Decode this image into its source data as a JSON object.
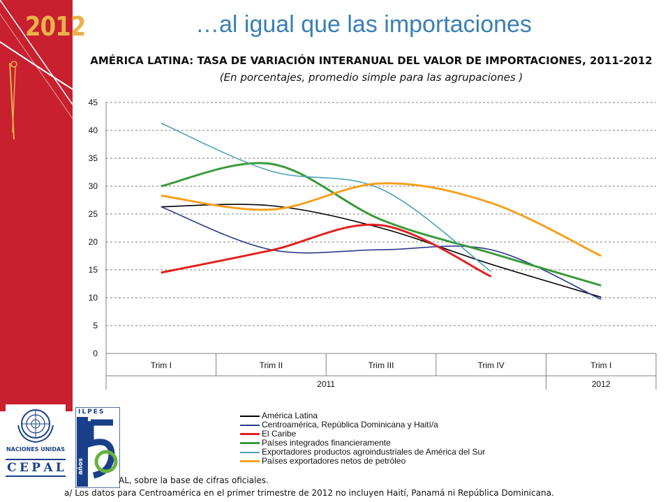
{
  "slide": {
    "title": "…al igual que las importaciones",
    "year_badge": "2012",
    "footnote_source": "AL, sobre la base de cifras oficiales.",
    "footnote_a": "a/ Los datos para Centroamérica en el primer trimestre de 2012 no incluyen Haití, Panamá ni República Dominicana.",
    "logos": {
      "un_label": "NACIONES UNIDAS",
      "cepal_letters": [
        "C",
        "E",
        "P",
        "A",
        "L"
      ],
      "ilpes_label": "ILPES",
      "ilpes_anos": "años"
    }
  },
  "colors": {
    "sidebar": "#c8202f",
    "year_badge": "#e9b24a",
    "title": "#3a7fb5",
    "logo_blue": "#1a3f8a",
    "logo_green": "#6ab23e"
  },
  "chart_data": {
    "type": "line",
    "title": "AMÉRICA LATINA: TASA DE VARIACIÓN INTERANUAL DEL VALOR DE IMPORTACIONES, 2011-2012",
    "subtitle": "(En porcentajes, promedio simple para las agrupaciones )",
    "categories": [
      "Trim I",
      "Trim II",
      "Trim III",
      "Trim IV",
      "Trim I"
    ],
    "category_groups": [
      {
        "label": "2011",
        "span": 4
      },
      {
        "label": "2012",
        "span": 1
      }
    ],
    "ylim": [
      0,
      45
    ],
    "yticks": [
      0,
      5,
      10,
      15,
      20,
      25,
      30,
      35,
      40,
      45
    ],
    "grid": true,
    "legend_position": "bottom",
    "series": [
      {
        "name": "América Latina",
        "color": "#000000",
        "values": [
          26.3,
          26.5,
          22.5,
          16.0,
          10.1
        ]
      },
      {
        "name": "Centroamérica, República Dominicana y Haití/a",
        "color": "#2b3a8c",
        "values": [
          26.3,
          18.6,
          18.6,
          18.6,
          9.7
        ]
      },
      {
        "name": "El Caribe",
        "color": "#e02020",
        "values": [
          14.5,
          18.5,
          23.0,
          13.8,
          null
        ]
      },
      {
        "name": "Países integrados financieramente",
        "color": "#3a9a3a",
        "values": [
          30.0,
          34.0,
          24.0,
          18.0,
          12.2
        ]
      },
      {
        "name": "Exportadores productos agroindustriales de América del Sur",
        "color": "#4ba3b3",
        "values": [
          41.3,
          32.7,
          29.5,
          14.7,
          null
        ]
      },
      {
        "name": "Países exportadores netos de petróleo",
        "color": "#f5a01e",
        "values": [
          28.3,
          25.8,
          30.5,
          27.0,
          17.5
        ]
      }
    ]
  }
}
